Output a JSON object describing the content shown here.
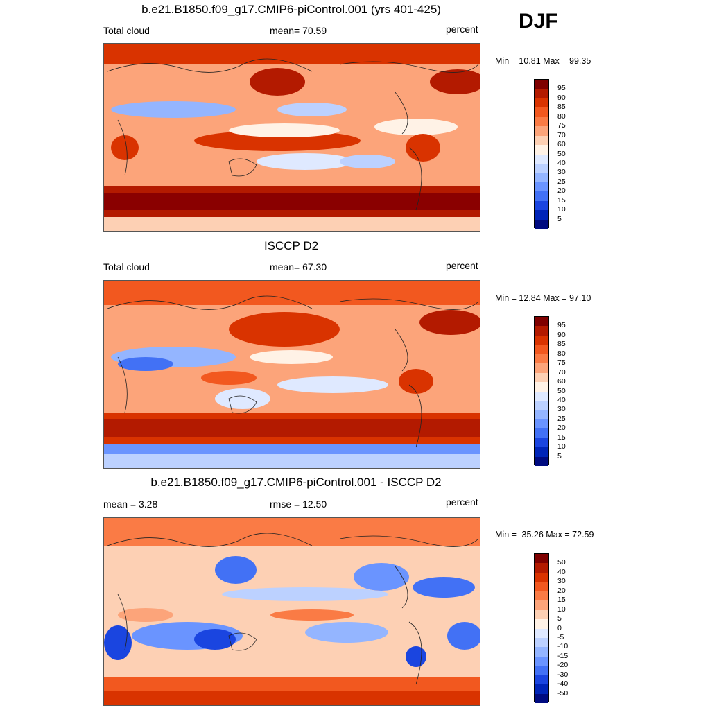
{
  "season": "DJF",
  "panels": [
    {
      "title": "b.e21.B1850.f09_g17.CMIP6-piControl.001 (yrs 401-425)",
      "left_label": "Total cloud",
      "center_label": "mean=  70.59",
      "right_label": "percent",
      "minmax": "Min =  10.81 Max =  99.35",
      "map_icon": "world-map-icon"
    },
    {
      "title": "ISCCP D2",
      "left_label": "Total cloud",
      "center_label": "mean=  67.30",
      "right_label": "percent",
      "minmax": "Min =  12.84 Max =  97.10",
      "map_icon": "world-map-icon"
    },
    {
      "title": "b.e21.B1850.f09_g17.CMIP6-piControl.001 - ISCCP D2",
      "left_label": "mean =   3.28",
      "center_label": "rmse =  12.50",
      "right_label": "percent",
      "minmax": "Min = -35.26 Max =  72.59",
      "map_icon": "world-map-icon"
    }
  ],
  "colorbar_abs": {
    "labels": [
      "95",
      "90",
      "85",
      "80",
      "75",
      "70",
      "60",
      "50",
      "40",
      "30",
      "25",
      "20",
      "15",
      "10",
      "5"
    ],
    "colors": [
      "#7f0000",
      "#b31a00",
      "#d93300",
      "#f2581f",
      "#fa7b45",
      "#fca47a",
      "#fdd0b4",
      "#fff2e6",
      "#dfe9ff",
      "#bcd1ff",
      "#94b5ff",
      "#6a94ff",
      "#4271f5",
      "#1a45e0",
      "#0025b8",
      "#000b80"
    ]
  },
  "colorbar_diff": {
    "labels": [
      "50",
      "40",
      "30",
      "20",
      "15",
      "10",
      "5",
      "0",
      "-5",
      "-10",
      "-15",
      "-20",
      "-30",
      "-40",
      "-50"
    ],
    "colors": [
      "#7f0000",
      "#b31a00",
      "#d93300",
      "#f2581f",
      "#fa7b45",
      "#fca47a",
      "#fdd0b4",
      "#fff2e6",
      "#dfe9ff",
      "#bcd1ff",
      "#94b5ff",
      "#6a94ff",
      "#4271f5",
      "#1a45e0",
      "#0025b8",
      "#000b80"
    ]
  }
}
